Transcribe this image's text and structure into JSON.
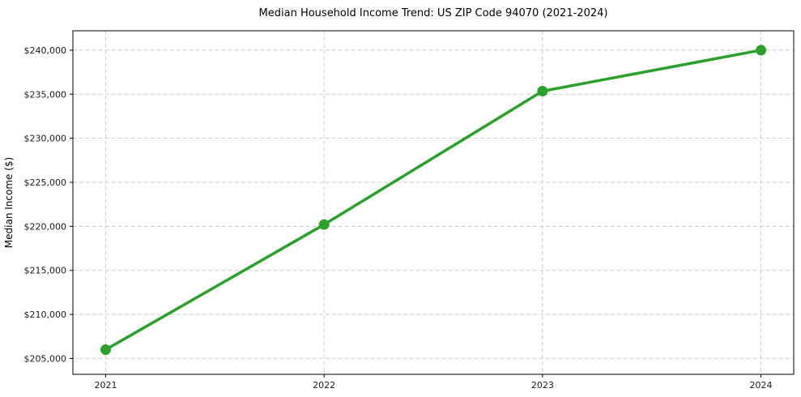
{
  "chart_data": {
    "type": "line",
    "title": "Median Household Income Trend: US ZIP Code 94070 (2021-2024)",
    "xlabel": "",
    "ylabel": "Median Income ($)",
    "x": [
      2021,
      2022,
      2023,
      2024
    ],
    "x_tick_labels": [
      "2021",
      "2022",
      "2023",
      "2024"
    ],
    "series": [
      {
        "name": "Median Household Income",
        "values": [
          206000,
          220200,
          235350,
          240000
        ]
      }
    ],
    "y_ticks": [
      205000,
      210000,
      215000,
      220000,
      225000,
      230000,
      235000,
      240000
    ],
    "y_tick_labels": [
      "$205,000",
      "$210,000",
      "$215,000",
      "$220,000",
      "$225,000",
      "$230,000",
      "$235,000",
      "$240,000"
    ],
    "xlim": [
      2020.85,
      2024.15
    ],
    "ylim": [
      203200,
      242200
    ],
    "grid": true,
    "grid_style": "dashed",
    "legend": "none",
    "colors": {
      "line": "#2ca02c",
      "marker": "#2ca02c",
      "grid": "#cccccc",
      "spine": "#000000",
      "text": "#1a1a1a",
      "background": "#ffffff"
    }
  }
}
